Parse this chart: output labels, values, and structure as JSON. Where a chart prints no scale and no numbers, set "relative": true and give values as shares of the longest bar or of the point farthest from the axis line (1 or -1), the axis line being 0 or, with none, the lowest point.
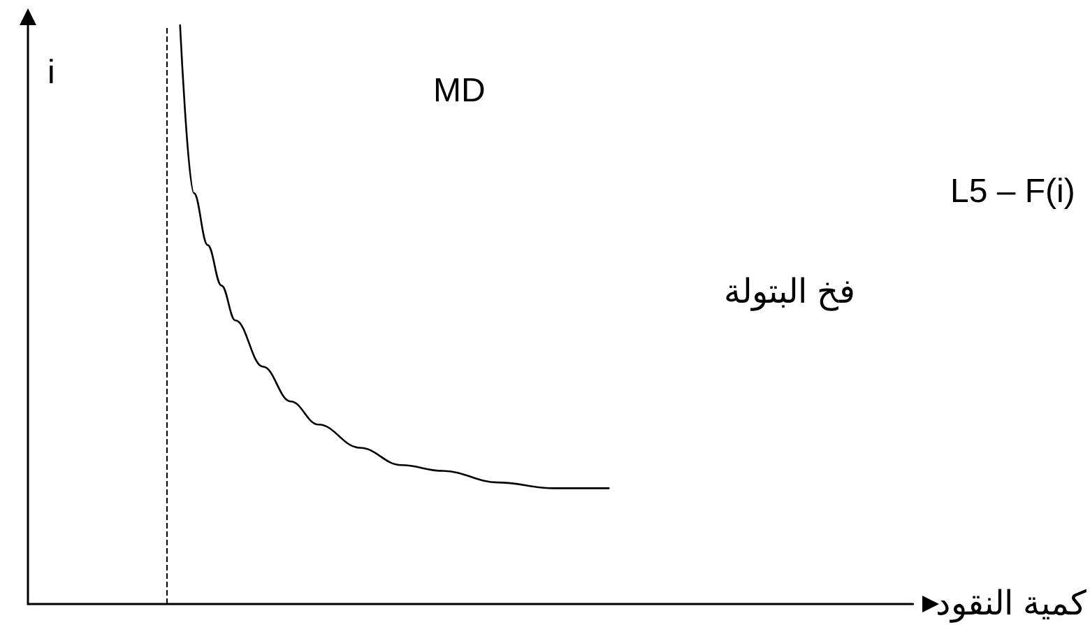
{
  "chart_data": {
    "type": "line",
    "relative": true,
    "tick_labels": false,
    "grid": false,
    "marker": "none",
    "line_style": "solid",
    "xlabel": "كمية النقود",
    "ylabel": "i",
    "annotations": [
      "MD",
      "L5 – F(i)",
      "فخ البتولة"
    ],
    "categories": [
      null,
      null,
      null,
      null,
      null,
      null,
      null,
      null,
      null,
      null,
      null,
      null,
      null,
      null,
      null,
      null,
      null,
      null,
      null,
      null,
      null,
      null,
      null,
      null,
      null,
      null,
      null,
      null,
      null,
      null,
      null,
      null,
      null,
      null,
      null,
      null,
      null,
      null,
      null,
      null,
      null,
      null,
      null,
      null,
      null,
      null,
      null,
      null,
      null,
      null,
      null,
      null,
      null,
      null,
      null,
      null,
      null,
      null,
      null,
      null,
      null,
      null,
      null,
      null,
      null
    ],
    "series": [
      {
        "color": "#000000",
        "values": [
          null,
          null,
          null,
          null,
          null,
          null,
          null,
          null,
          null,
          null,
          null,
          1.0,
          0.71,
          0.62,
          0.55,
          0.49,
          null,
          0.41,
          null,
          0.35,
          null,
          0.31,
          null,
          null,
          0.27,
          null,
          null,
          0.24,
          null,
          null,
          0.23,
          null,
          null,
          null,
          0.21,
          null,
          null,
          null,
          0.2,
          null,
          null,
          null,
          0.2,
          null,
          null,
          null,
          null,
          null,
          null,
          null,
          null,
          null,
          null,
          null,
          null,
          null,
          null,
          null,
          null,
          null,
          null,
          null,
          null,
          null,
          null
        ]
      }
    ]
  }
}
